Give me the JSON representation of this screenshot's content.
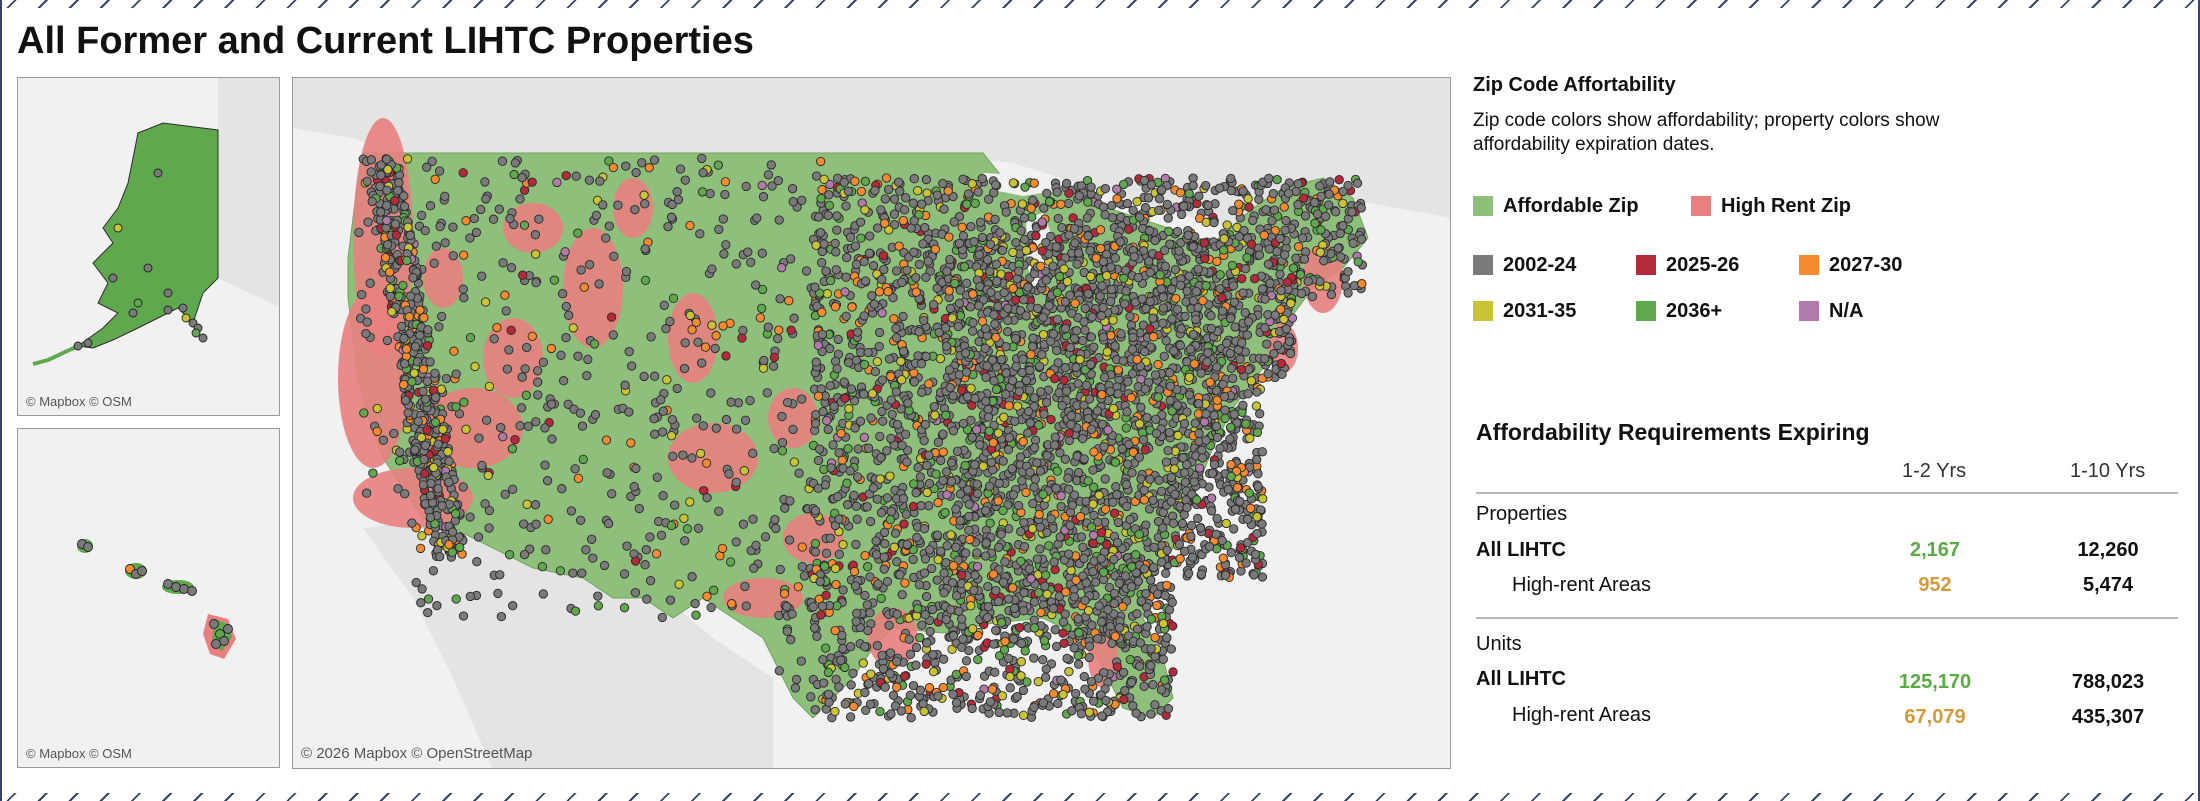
{
  "title": "All Former and Current LIHTC Properties",
  "maps": {
    "alaska_attribution": "© Mapbox © OSM",
    "hawaii_attribution": "© Mapbox © OSM",
    "main_attribution": "© 2026 Mapbox © OpenStreetMap"
  },
  "legend": {
    "title": "Zip Code Affortability",
    "description": "Zip code colors show affordability; property colors show affordability expiration dates.",
    "zip_items": [
      {
        "label": "Affordable Zip",
        "color": "#8ec07c"
      },
      {
        "label": "High Rent Zip",
        "color": "#e88080"
      }
    ],
    "year_items": [
      {
        "label": "2002-24",
        "color": "#7a7a7a"
      },
      {
        "label": "2025-26",
        "color": "#b52a3a"
      },
      {
        "label": "2027-30",
        "color": "#f58a2e"
      },
      {
        "label": "2031-35",
        "color": "#c9c436"
      },
      {
        "label": "2036+",
        "color": "#5fa84e"
      },
      {
        "label": "N/A",
        "color": "#b07aaa"
      }
    ]
  },
  "table": {
    "title": "Affordability Requirements Expiring",
    "col1": "1-2 Yrs",
    "col2": "1-10 Yrs",
    "sections": [
      {
        "label": "Properties",
        "rows": [
          {
            "label": "All LIHTC",
            "v1": "2,167",
            "v2": "12,260"
          },
          {
            "label": "High-rent Areas",
            "v1": "952",
            "v2": "5,474"
          }
        ]
      },
      {
        "label": "Units",
        "rows": [
          {
            "label": "All LIHTC",
            "v1": "125,170",
            "v2": "788,023"
          },
          {
            "label": "High-rent Areas",
            "v1": "67,079",
            "v2": "435,307"
          }
        ]
      }
    ]
  },
  "colors": {
    "affordable": "#8ec07c",
    "highrent": "#e88080",
    "land": "#e4e4e4",
    "water": "#f1f1f1",
    "value_green": "#5aab41",
    "value_gold": "#d49a3a"
  }
}
